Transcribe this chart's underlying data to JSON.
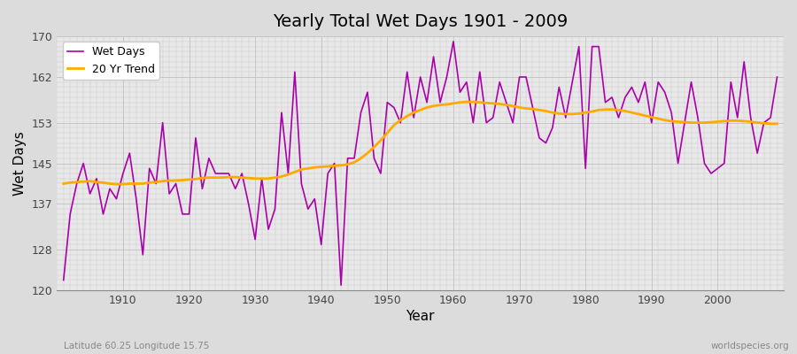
{
  "title": "Yearly Total Wet Days 1901 - 2009",
  "xlabel": "Year",
  "ylabel": "Wet Days",
  "subtitle": "Latitude 60.25 Longitude 15.75",
  "watermark": "worldspecies.org",
  "ylim": [
    120,
    170
  ],
  "yticks": [
    120,
    128,
    137,
    145,
    153,
    162,
    170
  ],
  "line_color": "#aa00aa",
  "trend_color": "#ffaa00",
  "bg_color": "#e8e8e8",
  "plot_bg_color": "#f0f0f0",
  "years": [
    1901,
    1902,
    1903,
    1904,
    1905,
    1906,
    1907,
    1908,
    1909,
    1910,
    1911,
    1912,
    1913,
    1914,
    1915,
    1916,
    1917,
    1918,
    1919,
    1920,
    1921,
    1922,
    1923,
    1924,
    1925,
    1926,
    1927,
    1928,
    1929,
    1930,
    1931,
    1932,
    1933,
    1934,
    1935,
    1936,
    1937,
    1938,
    1939,
    1940,
    1941,
    1942,
    1943,
    1944,
    1945,
    1946,
    1947,
    1948,
    1949,
    1950,
    1951,
    1952,
    1953,
    1954,
    1955,
    1956,
    1957,
    1958,
    1959,
    1960,
    1961,
    1962,
    1963,
    1964,
    1965,
    1966,
    1967,
    1968,
    1969,
    1970,
    1971,
    1972,
    1973,
    1974,
    1975,
    1976,
    1977,
    1978,
    1979,
    1980,
    1981,
    1982,
    1983,
    1984,
    1985,
    1986,
    1987,
    1988,
    1989,
    1990,
    1991,
    1992,
    1993,
    1994,
    1995,
    1996,
    1997,
    1998,
    1999,
    2000,
    2001,
    2002,
    2003,
    2004,
    2005,
    2006,
    2007,
    2008,
    2009
  ],
  "wet_days": [
    122,
    135,
    141,
    145,
    139,
    142,
    135,
    140,
    138,
    143,
    147,
    138,
    127,
    144,
    141,
    153,
    139,
    141,
    135,
    135,
    150,
    140,
    146,
    143,
    143,
    143,
    140,
    143,
    137,
    130,
    142,
    132,
    136,
    155,
    143,
    163,
    141,
    136,
    138,
    129,
    143,
    145,
    121,
    146,
    146,
    155,
    159,
    146,
    143,
    157,
    156,
    153,
    163,
    154,
    162,
    157,
    166,
    157,
    162,
    169,
    159,
    161,
    153,
    163,
    153,
    154,
    161,
    157,
    153,
    162,
    162,
    156,
    150,
    149,
    152,
    160,
    154,
    161,
    168,
    144,
    168,
    168,
    157,
    158,
    154,
    158,
    160,
    157,
    161,
    153,
    161,
    159,
    155,
    145,
    153,
    161,
    154,
    145,
    143,
    144,
    145,
    161,
    154,
    165,
    154,
    147,
    153,
    154,
    162
  ],
  "trend_data": [
    141.0,
    141.2,
    141.3,
    141.4,
    141.5,
    141.3,
    141.2,
    141.0,
    140.9,
    140.9,
    141.0,
    141.0,
    141.0,
    141.2,
    141.3,
    141.5,
    141.6,
    141.6,
    141.7,
    141.8,
    141.9,
    142.1,
    142.2,
    142.2,
    142.2,
    142.3,
    142.3,
    142.2,
    142.1,
    142.0,
    142.0,
    142.0,
    142.2,
    142.4,
    142.8,
    143.3,
    143.8,
    144.0,
    144.2,
    144.3,
    144.4,
    144.5,
    144.6,
    144.8,
    145.2,
    146.0,
    147.0,
    148.2,
    149.5,
    151.0,
    152.5,
    153.5,
    154.3,
    155.0,
    155.5,
    156.0,
    156.3,
    156.5,
    156.6,
    156.8,
    157.0,
    157.1,
    157.1,
    157.0,
    156.9,
    156.8,
    156.7,
    156.5,
    156.3,
    156.0,
    155.8,
    155.7,
    155.5,
    155.3,
    155.0,
    154.8,
    154.7,
    154.7,
    154.8,
    155.0,
    155.2,
    155.5,
    155.6,
    155.6,
    155.5,
    155.3,
    155.0,
    154.7,
    154.4,
    154.1,
    153.8,
    153.5,
    153.3,
    153.2,
    153.1,
    153.0,
    153.0,
    153.0,
    153.1,
    153.2,
    153.3,
    153.4,
    153.4,
    153.3,
    153.2,
    153.0,
    152.9,
    152.8,
    152.8
  ]
}
